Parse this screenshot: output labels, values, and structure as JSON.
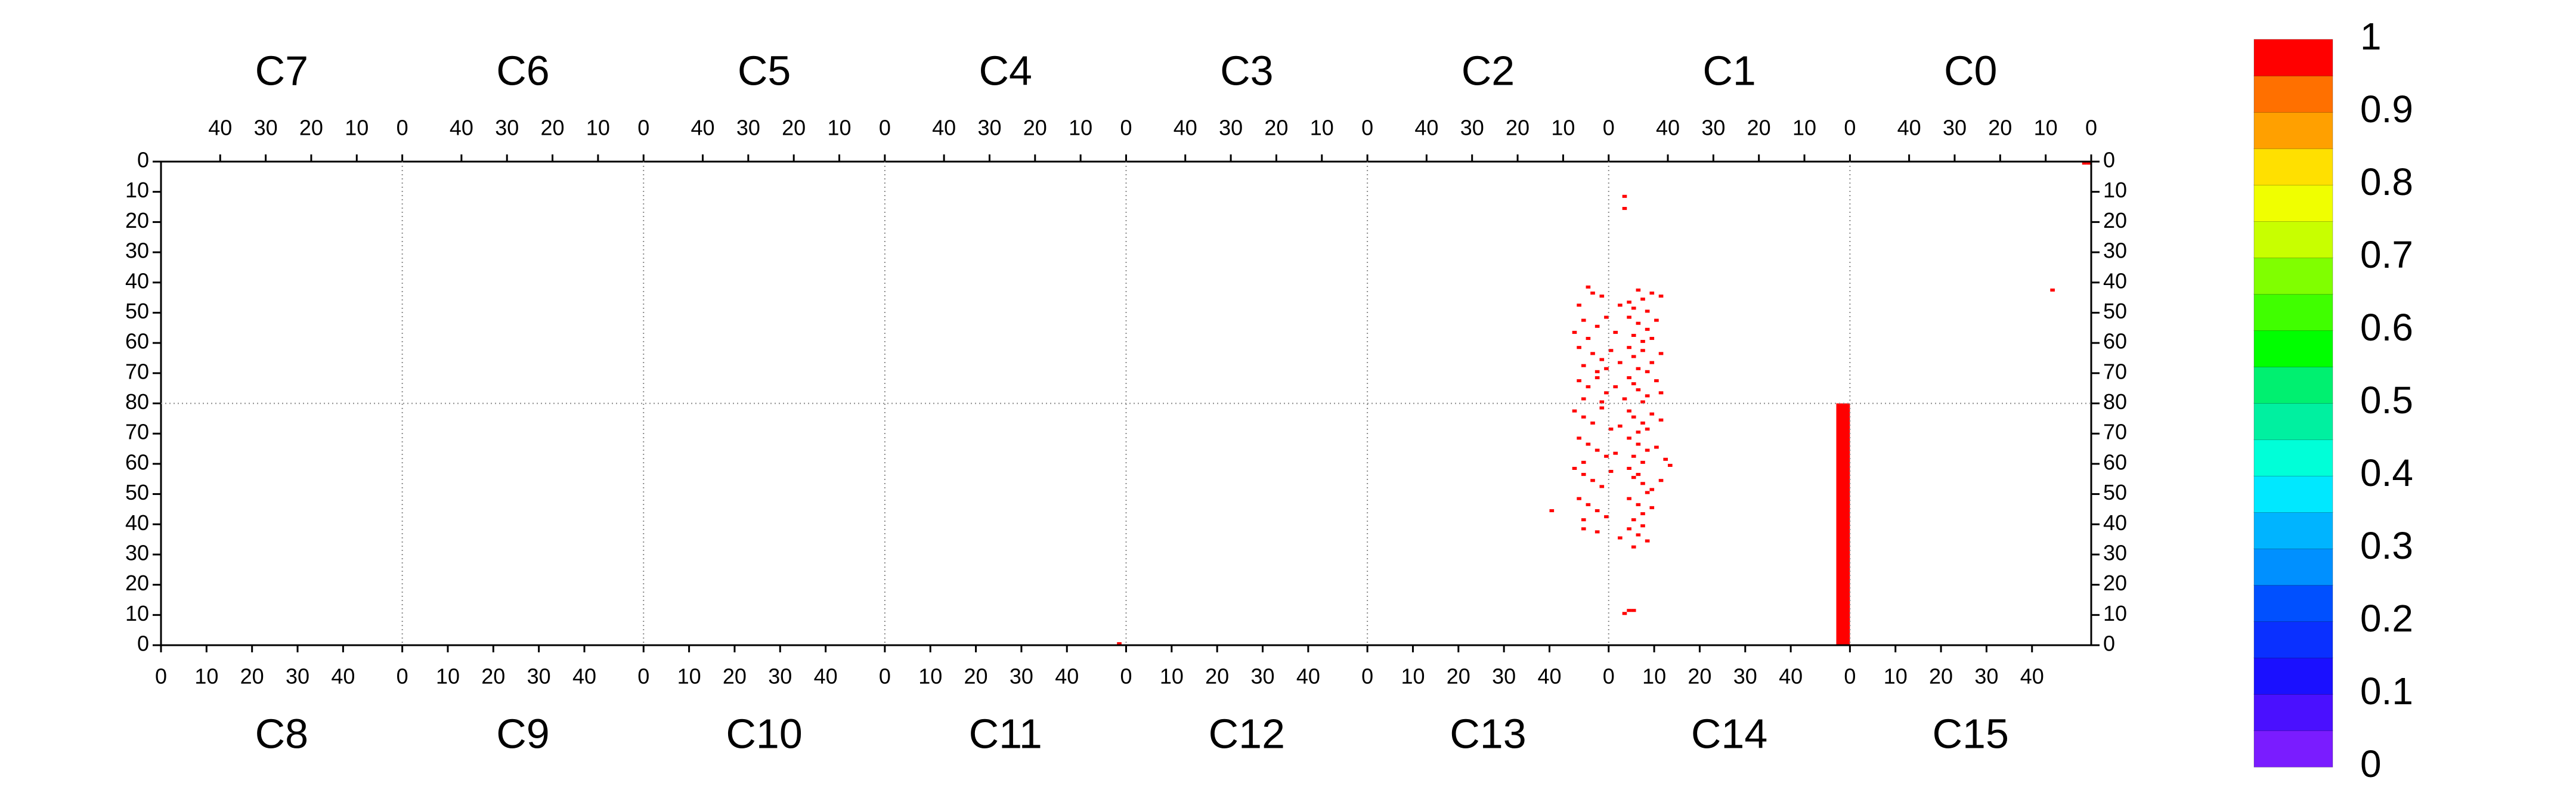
{
  "chart_data": {
    "type": "heatmap",
    "top_labels": [
      "C7",
      "C6",
      "C5",
      "C4",
      "C3",
      "C2",
      "C1",
      "C0"
    ],
    "bottom_labels": [
      "C8",
      "C9",
      "C10",
      "C11",
      "C12",
      "C13",
      "C14",
      "C15"
    ],
    "xlim": [
      0,
      424
    ],
    "ylim": [
      0,
      160
    ],
    "top_xticks": [
      {
        "value": 13,
        "label": "40"
      },
      {
        "value": 23,
        "label": "30"
      },
      {
        "value": 33,
        "label": "20"
      },
      {
        "value": 43,
        "label": "10"
      },
      {
        "value": 53,
        "label": "0"
      },
      {
        "value": 66,
        "label": "40"
      },
      {
        "value": 76,
        "label": "30"
      },
      {
        "value": 86,
        "label": "20"
      },
      {
        "value": 96,
        "label": "10"
      },
      {
        "value": 106,
        "label": "0"
      },
      {
        "value": 119,
        "label": "40"
      },
      {
        "value": 129,
        "label": "30"
      },
      {
        "value": 139,
        "label": "20"
      },
      {
        "value": 149,
        "label": "10"
      },
      {
        "value": 159,
        "label": "0"
      },
      {
        "value": 172,
        "label": "40"
      },
      {
        "value": 182,
        "label": "30"
      },
      {
        "value": 192,
        "label": "20"
      },
      {
        "value": 202,
        "label": "10"
      },
      {
        "value": 212,
        "label": "0"
      },
      {
        "value": 225,
        "label": "40"
      },
      {
        "value": 235,
        "label": "30"
      },
      {
        "value": 245,
        "label": "20"
      },
      {
        "value": 255,
        "label": "10"
      },
      {
        "value": 265,
        "label": "0"
      },
      {
        "value": 278,
        "label": "40"
      },
      {
        "value": 288,
        "label": "30"
      },
      {
        "value": 298,
        "label": "20"
      },
      {
        "value": 308,
        "label": "10"
      },
      {
        "value": 318,
        "label": "0"
      },
      {
        "value": 331,
        "label": "40"
      },
      {
        "value": 341,
        "label": "30"
      },
      {
        "value": 351,
        "label": "20"
      },
      {
        "value": 361,
        "label": "10"
      },
      {
        "value": 371,
        "label": "0"
      },
      {
        "value": 384,
        "label": "40"
      },
      {
        "value": 394,
        "label": "30"
      },
      {
        "value": 404,
        "label": "20"
      },
      {
        "value": 414,
        "label": "10"
      },
      {
        "value": 424,
        "label": "0"
      }
    ],
    "bottom_xticks": [
      0,
      10,
      20,
      30,
      40,
      {
        "value": 53,
        "label": "0"
      },
      {
        "value": 63,
        "label": "10"
      },
      {
        "value": 73,
        "label": "20"
      },
      {
        "value": 83,
        "label": "30"
      },
      {
        "value": 93,
        "label": "40"
      },
      {
        "value": 106,
        "label": "0"
      },
      {
        "value": 116,
        "label": "10"
      },
      {
        "value": 126,
        "label": "20"
      },
      {
        "value": 136,
        "label": "30"
      },
      {
        "value": 146,
        "label": "40"
      },
      {
        "value": 159,
        "label": "0"
      },
      {
        "value": 169,
        "label": "10"
      },
      {
        "value": 179,
        "label": "20"
      },
      {
        "value": 189,
        "label": "30"
      },
      {
        "value": 199,
        "label": "40"
      },
      {
        "value": 212,
        "label": "0"
      },
      {
        "value": 222,
        "label": "10"
      },
      {
        "value": 232,
        "label": "20"
      },
      {
        "value": 242,
        "label": "30"
      },
      {
        "value": 252,
        "label": "40"
      },
      {
        "value": 265,
        "label": "0"
      },
      {
        "value": 275,
        "label": "10"
      },
      {
        "value": 285,
        "label": "20"
      },
      {
        "value": 295,
        "label": "30"
      },
      {
        "value": 305,
        "label": "40"
      },
      {
        "value": 318,
        "label": "0"
      },
      {
        "value": 328,
        "label": "10"
      },
      {
        "value": 338,
        "label": "20"
      },
      {
        "value": 348,
        "label": "30"
      },
      {
        "value": 358,
        "label": "40"
      },
      {
        "value": 371,
        "label": "0"
      },
      {
        "value": 381,
        "label": "10"
      },
      {
        "value": 391,
        "label": "20"
      },
      {
        "value": 401,
        "label": "30"
      },
      {
        "value": 411,
        "label": "40"
      }
    ],
    "yticks": [
      0,
      10,
      20,
      30,
      40,
      50,
      60,
      70,
      80,
      {
        "value": 90,
        "label": "70"
      },
      {
        "value": 100,
        "label": "60"
      },
      {
        "value": 110,
        "label": "50"
      },
      {
        "value": 120,
        "label": "40"
      },
      {
        "value": 130,
        "label": "30"
      },
      {
        "value": 140,
        "label": "20"
      },
      {
        "value": 150,
        "label": "10"
      },
      {
        "value": 160,
        "label": "0"
      }
    ],
    "grid": true,
    "colorbar": {
      "lim": [
        0,
        1
      ],
      "ticks": [
        0,
        0.1,
        0.2,
        0.3,
        0.4,
        0.5,
        0.6,
        0.7,
        0.8,
        0.9,
        1
      ],
      "colors": [
        "#7a1cff",
        "#4a10ff",
        "#1a10ff",
        "#0a30ff",
        "#0050ff",
        "#0090ff",
        "#00b4ff",
        "#00e8ff",
        "#00ffd8",
        "#00f0a0",
        "#00f070",
        "#00ff00",
        "#40ff00",
        "#80ff00",
        "#c8ff00",
        "#f0ff00",
        "#ffe000",
        "#ffa000",
        "#ff7000",
        "#ff0000"
      ]
    },
    "cells": [
      [
        321,
        11,
        1
      ],
      [
        321,
        15,
        1
      ],
      [
        322,
        148,
        1
      ],
      [
        323,
        148,
        1
      ],
      [
        321,
        149,
        1
      ],
      [
        415,
        42,
        1
      ],
      [
        210,
        159,
        1
      ],
      [
        422,
        0,
        1
      ],
      [
        423,
        0,
        1
      ],
      [
        313,
        41,
        1
      ],
      [
        314,
        43,
        1
      ],
      [
        316,
        44,
        1
      ],
      [
        311,
        47,
        1
      ],
      [
        324,
        42,
        1
      ],
      [
        327,
        43,
        1
      ],
      [
        325,
        45,
        1
      ],
      [
        322,
        46,
        1
      ],
      [
        329,
        44,
        1
      ],
      [
        323,
        48,
        1
      ],
      [
        326,
        49,
        1
      ],
      [
        320,
        47,
        1
      ],
      [
        312,
        52,
        1
      ],
      [
        315,
        54,
        1
      ],
      [
        317,
        51,
        1
      ],
      [
        319,
        56,
        1
      ],
      [
        313,
        58,
        1
      ],
      [
        322,
        51,
        1
      ],
      [
        324,
        53,
        1
      ],
      [
        326,
        55,
        1
      ],
      [
        328,
        52,
        1
      ],
      [
        323,
        57,
        1
      ],
      [
        325,
        59,
        1
      ],
      [
        327,
        58,
        1
      ],
      [
        310,
        56,
        1
      ],
      [
        311,
        61,
        1
      ],
      [
        314,
        63,
        1
      ],
      [
        316,
        65,
        1
      ],
      [
        318,
        62,
        1
      ],
      [
        312,
        67,
        1
      ],
      [
        315,
        69,
        1
      ],
      [
        322,
        61,
        1
      ],
      [
        323,
        64,
        1
      ],
      [
        325,
        62,
        1
      ],
      [
        327,
        66,
        1
      ],
      [
        324,
        68,
        1
      ],
      [
        326,
        69,
        1
      ],
      [
        329,
        63,
        1
      ],
      [
        320,
        66,
        1
      ],
      [
        317,
        68,
        1
      ],
      [
        311,
        72,
        1
      ],
      [
        313,
        74,
        1
      ],
      [
        315,
        71,
        1
      ],
      [
        317,
        76,
        1
      ],
      [
        312,
        78,
        1
      ],
      [
        316,
        79,
        1
      ],
      [
        322,
        71,
        1
      ],
      [
        323,
        73,
        1
      ],
      [
        324,
        75,
        1
      ],
      [
        326,
        77,
        1
      ],
      [
        328,
        72,
        1
      ],
      [
        325,
        79,
        1
      ],
      [
        329,
        76,
        1
      ],
      [
        319,
        74,
        1
      ],
      [
        321,
        78,
        1
      ],
      [
        310,
        82,
        1
      ],
      [
        312,
        84,
        1
      ],
      [
        314,
        86,
        1
      ],
      [
        316,
        81,
        1
      ],
      [
        318,
        88,
        1
      ],
      [
        322,
        82,
        1
      ],
      [
        323,
        84,
        1
      ],
      [
        325,
        86,
        1
      ],
      [
        327,
        83,
        1
      ],
      [
        324,
        89,
        1
      ],
      [
        326,
        88,
        1
      ],
      [
        329,
        85,
        1
      ],
      [
        320,
        87,
        1
      ],
      [
        311,
        91,
        1
      ],
      [
        313,
        93,
        1
      ],
      [
        315,
        95,
        1
      ],
      [
        317,
        97,
        1
      ],
      [
        312,
        99,
        1
      ],
      [
        322,
        91,
        1
      ],
      [
        324,
        93,
        1
      ],
      [
        326,
        95,
        1
      ],
      [
        323,
        97,
        1
      ],
      [
        325,
        99,
        1
      ],
      [
        328,
        94,
        1
      ],
      [
        319,
        96,
        1
      ],
      [
        330,
        98,
        1
      ],
      [
        310,
        101,
        1
      ],
      [
        312,
        103,
        1
      ],
      [
        314,
        105,
        1
      ],
      [
        316,
        107,
        1
      ],
      [
        318,
        102,
        1
      ],
      [
        322,
        101,
        1
      ],
      [
        323,
        104,
        1
      ],
      [
        325,
        106,
        1
      ],
      [
        327,
        108,
        1
      ],
      [
        324,
        103,
        1
      ],
      [
        326,
        109,
        1
      ],
      [
        329,
        105,
        1
      ],
      [
        331,
        100,
        1
      ],
      [
        311,
        111,
        1
      ],
      [
        313,
        113,
        1
      ],
      [
        315,
        115,
        1
      ],
      [
        312,
        118,
        1
      ],
      [
        322,
        111,
        1
      ],
      [
        324,
        113,
        1
      ],
      [
        325,
        116,
        1
      ],
      [
        323,
        118,
        1
      ],
      [
        327,
        114,
        1
      ],
      [
        305,
        115,
        1
      ],
      [
        317,
        117,
        1
      ],
      [
        312,
        121,
        1
      ],
      [
        315,
        122,
        1
      ],
      [
        320,
        124,
        1
      ],
      [
        322,
        121,
        1
      ],
      [
        324,
        123,
        1
      ],
      [
        326,
        125,
        1
      ],
      [
        323,
        127,
        1
      ],
      [
        325,
        120,
        1
      ]
    ],
    "regions": [
      {
        "x": [
          368,
          371
        ],
        "y": [
          80,
          160
        ],
        "value": 1
      }
    ]
  }
}
